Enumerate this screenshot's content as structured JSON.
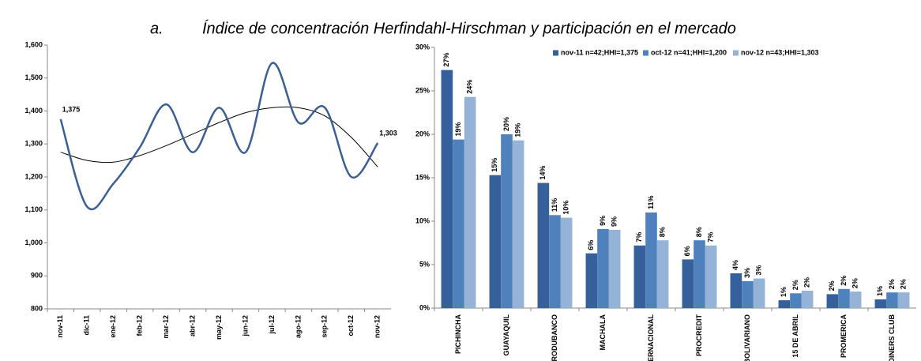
{
  "title_marker": "a.",
  "title": "Índice de concentración Herfindahl-Hirschman y participación en el mercado",
  "chart_data": [
    {
      "type": "line",
      "categories": [
        "nov-11",
        "dic-11",
        "ene-12",
        "feb-12",
        "mar-12",
        "abr-12",
        "may-12",
        "jun-12",
        "jul-12",
        "ago-12",
        "sep-12",
        "oct-12",
        "nov-12"
      ],
      "series": [
        {
          "color": "#3b5f93",
          "values": [
            1375,
            1110,
            1180,
            1290,
            1420,
            1275,
            1410,
            1275,
            1545,
            1365,
            1410,
            1200,
            1303
          ],
          "value_labels": [
            "1,375",
            null,
            null,
            null,
            null,
            null,
            null,
            null,
            null,
            null,
            null,
            null,
            "1,303"
          ]
        }
      ],
      "trend": {
        "color": "#000000",
        "values": [
          1275,
          1250,
          1245,
          1265,
          1295,
          1330,
          1365,
          1395,
          1410,
          1410,
          1385,
          1320,
          1230
        ]
      },
      "ylim": [
        800,
        1600
      ],
      "yticks": [
        800,
        900,
        {
          "value": 1000,
          "label": "1,000"
        },
        {
          "value": 1100,
          "label": "1,100"
        },
        {
          "value": 1200,
          "label": "1,200"
        },
        {
          "value": 1300,
          "label": "1,300"
        },
        {
          "value": 1400,
          "label": "1,400"
        },
        {
          "value": 1500,
          "label": "1,500"
        },
        {
          "value": 1600,
          "label": "1,600"
        }
      ]
    },
    {
      "type": "bar",
      "categories": [
        "PICHINCHA",
        "GUAYAQUIL",
        "PRODUBANCO",
        "MACHALA",
        "INTERNACIONAL",
        "PROCREDIT",
        "BOLIVARIANO",
        "15 DE ABRIL",
        "PROMERICA",
        "DINERS CLUB"
      ],
      "series": [
        {
          "name": "nov-11 n=42;HHI=1,375",
          "color": "#35609b",
          "values": [
            27.4,
            15.3,
            14.4,
            6.3,
            7.2,
            5.6,
            4.0,
            0.9,
            1.6,
            1.0
          ],
          "value_labels": [
            "27%",
            "15%",
            "14%",
            "6%",
            "7%",
            "6%",
            "4%",
            "1%",
            "2%",
            "1%"
          ]
        },
        {
          "name": "oct-12 n=41;HHI=1,200",
          "color": "#4f81bd",
          "values": [
            19.4,
            20.0,
            10.7,
            9.1,
            11.0,
            7.8,
            3.1,
            1.7,
            2.2,
            1.8
          ],
          "value_labels": [
            "19%",
            "20%",
            "11%",
            "9%",
            "11%",
            "8%",
            "3%",
            "2%",
            "2%",
            "2%"
          ]
        },
        {
          "name": "nov-12 n=43;HHI=1,303",
          "color": "#95b3d7",
          "values": [
            24.3,
            19.3,
            10.4,
            9.0,
            7.8,
            7.2,
            3.4,
            2.0,
            1.9,
            1.8
          ],
          "value_labels": [
            "24%",
            "19%",
            "10%",
            "9%",
            "8%",
            "7%",
            "3%",
            "2%",
            "2%",
            "2%"
          ]
        }
      ],
      "ylim": [
        0,
        30
      ],
      "yticks": [
        {
          "value": 0,
          "label": "0%"
        },
        {
          "value": 5,
          "label": "5%"
        },
        {
          "value": 10,
          "label": "10%"
        },
        {
          "value": 15,
          "label": "15%"
        },
        {
          "value": 20,
          "label": "20%"
        },
        {
          "value": 25,
          "label": "25%"
        },
        {
          "value": 30,
          "label": "30%"
        }
      ],
      "legend": "top"
    }
  ]
}
